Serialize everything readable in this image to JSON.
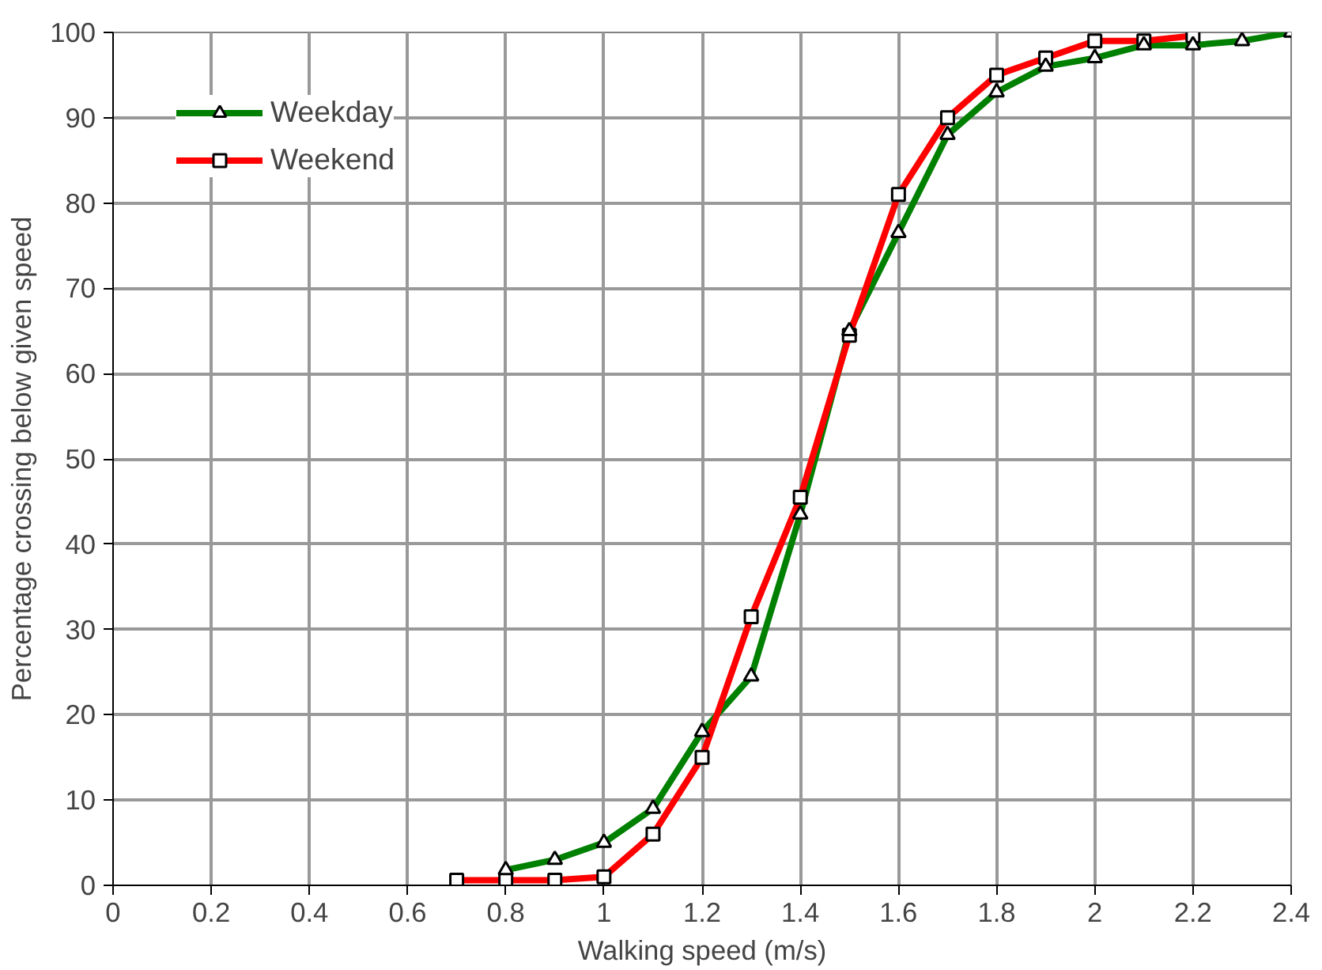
{
  "chart_data": {
    "type": "line",
    "xlabel": "Walking speed (m/s)",
    "ylabel": "Percentage crossing below given speed",
    "xlim": [
      0,
      2.4
    ],
    "xticks": [
      0,
      0.2,
      0.4,
      0.6,
      0.8,
      1,
      1.2,
      1.4,
      1.6,
      1.8,
      2,
      2.2,
      2.4
    ],
    "ylim": [
      0,
      100
    ],
    "yticks": [
      0,
      10,
      20,
      30,
      40,
      50,
      60,
      70,
      80,
      90,
      100
    ],
    "grid": true,
    "legend": "top left",
    "line_style": "solid",
    "series": [
      {
        "name": "Weekday",
        "color": "#008000",
        "marker": "triangle",
        "x": [
          0.8,
          0.9,
          1.0,
          1.1,
          1.2,
          1.3,
          1.4,
          1.5,
          1.6,
          1.7,
          1.8,
          1.9,
          2.0,
          2.1,
          2.2,
          2.3,
          2.4
        ],
        "values": [
          1.8,
          3,
          5,
          9,
          18,
          24.5,
          43.5,
          65,
          76.5,
          88,
          93,
          96,
          97,
          98.5,
          98.5,
          99,
          100
        ]
      },
      {
        "name": "Weekend",
        "color": "#ff0000",
        "marker": "square",
        "x": [
          0.7,
          0.8,
          0.9,
          1.0,
          1.1,
          1.2,
          1.3,
          1.4,
          1.5,
          1.6,
          1.7,
          1.8,
          1.9,
          2.0,
          2.1,
          2.2
        ],
        "values": [
          0.6,
          0.6,
          0.6,
          1,
          6,
          15,
          31.5,
          45.5,
          64.5,
          81,
          90,
          95,
          97,
          99,
          99,
          99.6
        ]
      }
    ]
  }
}
